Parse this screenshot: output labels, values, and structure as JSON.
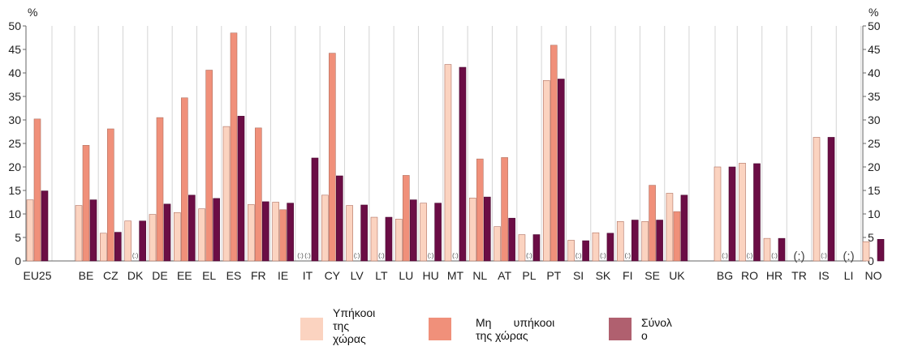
{
  "chart_data": {
    "type": "bar",
    "y_unit_left": "%",
    "y_unit_right": "%",
    "ylim": [
      0,
      50
    ],
    "yticks": [
      0,
      5,
      10,
      15,
      20,
      25,
      30,
      35,
      40,
      45,
      50
    ],
    "grid": "vertical separators",
    "categories": [
      "EU25",
      "BE",
      "CZ",
      "DK",
      "DE",
      "EE",
      "EL",
      "ES",
      "FR",
      "IE",
      "IT",
      "CY",
      "LV",
      "LT",
      "LU",
      "HU",
      "MT",
      "NL",
      "AT",
      "PL",
      "PT",
      "SI",
      "SK",
      "FI",
      "SE",
      "UK",
      "BG",
      "RO",
      "HR",
      "TR",
      "IS",
      "LI",
      "NO"
    ],
    "series": [
      {
        "name": "Υπήκοοι της χώρας",
        "color": "#fbd3c0",
        "values": [
          13,
          11.8,
          5.9,
          8.5,
          9.9,
          10.3,
          11.1,
          28.6,
          12,
          12.5,
          null,
          14,
          11.8,
          9.3,
          8.9,
          12.3,
          41.8,
          13.4,
          7.3,
          5.6,
          38.4,
          4.4,
          6,
          8.4,
          8.4,
          14.4,
          20,
          20.8,
          4.8,
          null,
          26.3,
          null,
          4.1
        ]
      },
      {
        "name": "Μη υπήκοοι της χώρας",
        "color": "#f0907a",
        "values": [
          30.2,
          24.6,
          28.1,
          null,
          30.5,
          34.7,
          40.6,
          48.5,
          28.3,
          10.9,
          null,
          44.2,
          null,
          null,
          18.2,
          null,
          null,
          21.7,
          22,
          null,
          45.9,
          null,
          null,
          null,
          16.1,
          10.5,
          null,
          null,
          null,
          null,
          null,
          null,
          null
        ]
      },
      {
        "name": "Σύνολο",
        "color": "#6b0d45",
        "values": [
          14.9,
          13,
          6.1,
          8.5,
          12.1,
          14,
          13.3,
          30.8,
          12.6,
          12.3,
          21.9,
          18.1,
          11.9,
          9.3,
          13,
          12.3,
          41.2,
          13.6,
          9.1,
          5.6,
          38.7,
          4.3,
          5.9,
          8.7,
          8.7,
          14,
          20,
          20.7,
          4.8,
          null,
          26.3,
          null,
          4.6
        ]
      }
    ],
    "markers": [
      {
        "category": "DK",
        "series": 1,
        "text": "(:)",
        "size": "small"
      },
      {
        "category": "IT",
        "series": 0,
        "text": "(:)",
        "size": "small"
      },
      {
        "category": "IT",
        "series": 1,
        "text": "(:)",
        "size": "small"
      },
      {
        "category": "LV",
        "series": 1,
        "text": "(:)",
        "size": "small"
      },
      {
        "category": "LT",
        "series": 1,
        "text": "(:)",
        "size": "small"
      },
      {
        "category": "HU",
        "series": 1,
        "text": "(:)",
        "size": "small"
      },
      {
        "category": "MT",
        "series": 1,
        "text": "(:)",
        "size": "small"
      },
      {
        "category": "PL",
        "series": 1,
        "text": "(:)",
        "size": "small"
      },
      {
        "category": "SI",
        "series": 1,
        "text": "(:)",
        "size": "small"
      },
      {
        "category": "SK",
        "series": 1,
        "text": "(:)",
        "size": "small"
      },
      {
        "category": "FI",
        "series": 1,
        "text": "(:)",
        "size": "small"
      },
      {
        "category": "BG",
        "series": 1,
        "text": "(:)",
        "size": "small"
      },
      {
        "category": "RO",
        "series": 1,
        "text": "(:)",
        "size": "small"
      },
      {
        "category": "HR",
        "series": 1,
        "text": "(:)",
        "size": "small"
      },
      {
        "category": "IS",
        "series": 1,
        "text": "(:)",
        "size": "small"
      },
      {
        "category": "TR",
        "series": 1,
        "text": "(:)",
        "size": "large"
      },
      {
        "category": "LI",
        "series": 1,
        "text": "(:)",
        "size": "large"
      }
    ]
  },
  "legend": [
    {
      "label": "Υπήκοοι\nτης\nχώρας",
      "color": "#fbd3c0"
    },
    {
      "label": "Μη       υπήκοοι\nτης χώρας",
      "color": "#f0907a"
    },
    {
      "label": "Σύνολ\nο",
      "color": "#b0606f"
    }
  ]
}
